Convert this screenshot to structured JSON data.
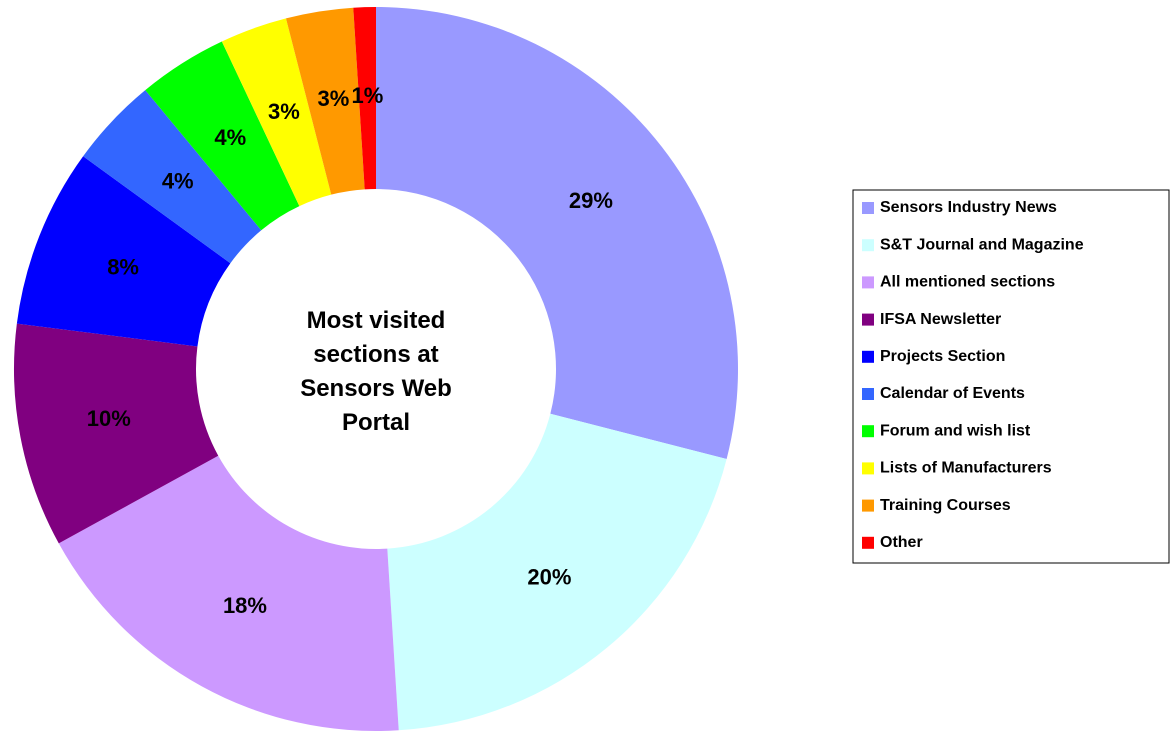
{
  "chart_data": {
    "type": "pie",
    "title": "Most visited sections at Sensors Web Portal",
    "categories": [
      "Sensors Industry News",
      "S&T Journal and Magazine",
      "All mentioned sections",
      "IFSA Newsletter",
      "Projects Section",
      "Calendar of Events",
      "Forum and wish list",
      "Lists of Manufacturers",
      "Training Courses",
      "Other"
    ],
    "values": [
      29,
      20,
      18,
      10,
      8,
      4,
      4,
      3,
      3,
      1
    ],
    "value_labels": [
      "29%",
      "20%",
      "18%",
      "10%",
      "8%",
      "4%",
      "4%",
      "3%",
      "3%",
      "1%"
    ],
    "colors": [
      "#9999ff",
      "#ccffff",
      "#cc99ff",
      "#800080",
      "#0000ff",
      "#3366ff",
      "#00ff00",
      "#ffff00",
      "#ff9900",
      "#ff0000"
    ],
    "donut": true,
    "legend": "right"
  }
}
